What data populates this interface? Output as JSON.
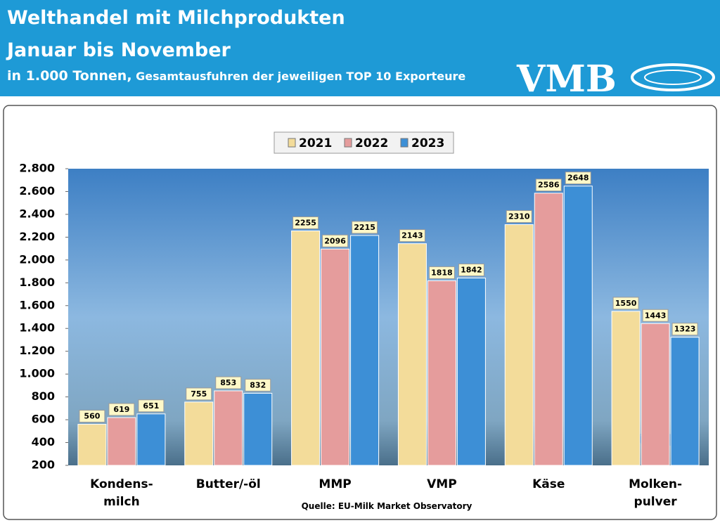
{
  "header": {
    "title": "Welthandel mit Milchprodukten",
    "subtitle": "Januar bis November",
    "unit": "in 1.000 Tonnen,",
    "description": "Gesamtausfuhren der jeweiligen TOP 10 Exporteure",
    "logo": "VMB"
  },
  "chart_data": {
    "type": "bar",
    "categories": [
      "Kondens-\nmilch",
      "Butter/-öl",
      "MMP",
      "VMP",
      "Käse",
      "Molken-\npulver"
    ],
    "series": [
      {
        "name": "2021",
        "color": "#f3dc9a",
        "values": [
          560,
          755,
          2255,
          2143,
          2310,
          1550
        ]
      },
      {
        "name": "2022",
        "color": "#e59c9c",
        "values": [
          619,
          853,
          2096,
          1818,
          2586,
          1443
        ]
      },
      {
        "name": "2023",
        "color": "#3d8fd6",
        "values": [
          651,
          832,
          2215,
          1842,
          2648,
          1323
        ]
      }
    ],
    "ylim": [
      200,
      2800
    ],
    "yticks": [
      200,
      400,
      600,
      800,
      {
        "value": 1000,
        "label": "1.000"
      },
      {
        "value": 1200,
        "label": "1.200"
      },
      {
        "value": 1400,
        "label": "1.400"
      },
      {
        "value": 1600,
        "label": "1.600"
      },
      {
        "value": 1800,
        "label": "1.800"
      },
      {
        "value": 2000,
        "label": "2.000"
      },
      {
        "value": 2200,
        "label": "2.200"
      },
      {
        "value": 2400,
        "label": "2.400"
      },
      {
        "value": 2600,
        "label": "2.600"
      },
      {
        "value": 2800,
        "label": "2.800"
      }
    ],
    "legend": "top",
    "source": "Quelle: EU-Milk Market Observatory"
  }
}
